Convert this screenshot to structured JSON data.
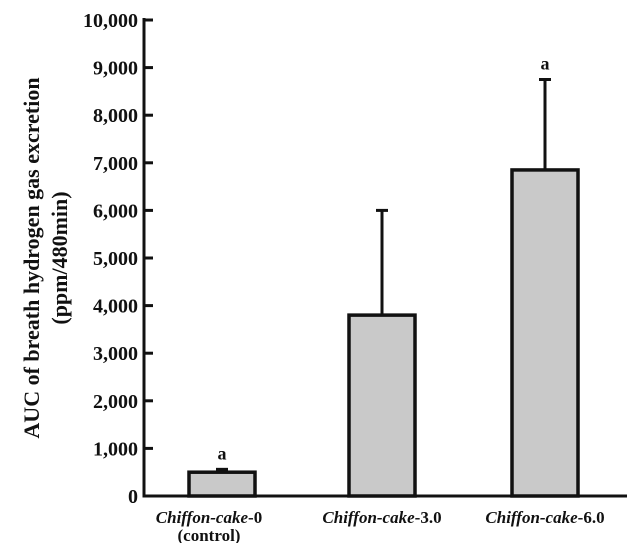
{
  "chart_data": {
    "type": "bar",
    "ylabel_line1": "AUC of breath hydrogen gas excretion",
    "ylabel_line2": "(ppm/480min)",
    "ylim": [
      0,
      10000
    ],
    "yticks": [
      0,
      1000,
      2000,
      3000,
      4000,
      5000,
      6000,
      7000,
      8000,
      9000,
      10000
    ],
    "ytick_labels": [
      "0",
      "1,000",
      "2,000",
      "3,000",
      "4,000",
      "5,000",
      "6,000",
      "7,000",
      "8,000",
      "9,000",
      "10,000"
    ],
    "categories": [
      {
        "prefix": "Chiffon-cake",
        "suffix": "-0",
        "subtitle": "(control)"
      },
      {
        "prefix": "Chiffon-cake",
        "suffix": "-3.0",
        "subtitle": ""
      },
      {
        "prefix": "Chiffon-cake",
        "suffix": "-6.0",
        "subtitle": ""
      }
    ],
    "values": [
      500,
      3800,
      6850
    ],
    "error_upper": [
      560,
      6000,
      8750
    ],
    "significance": [
      "a",
      "",
      "a"
    ],
    "bar_color": "#c9c9c9",
    "grid": false
  }
}
